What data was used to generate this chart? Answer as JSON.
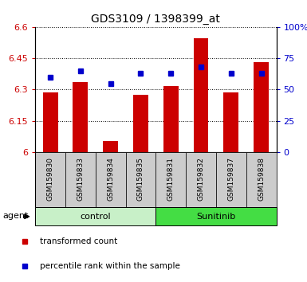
{
  "title": "GDS3109 / 1398399_at",
  "samples": [
    "GSM159830",
    "GSM159833",
    "GSM159834",
    "GSM159835",
    "GSM159831",
    "GSM159832",
    "GSM159837",
    "GSM159838"
  ],
  "red_values": [
    6.285,
    6.335,
    6.055,
    6.275,
    6.315,
    6.545,
    6.285,
    6.43
  ],
  "blue_values": [
    60,
    65,
    55,
    63,
    63,
    68,
    63,
    63
  ],
  "groups": [
    {
      "label": "control",
      "indices": [
        0,
        1,
        2,
        3
      ],
      "color": "#c8f0c8"
    },
    {
      "label": "Sunitinib",
      "indices": [
        4,
        5,
        6,
        7
      ],
      "color": "#44dd44"
    }
  ],
  "ylim_left": [
    6.0,
    6.6
  ],
  "ylim_right": [
    0,
    100
  ],
  "yticks_left": [
    6.0,
    6.15,
    6.3,
    6.45,
    6.6
  ],
  "yticks_right": [
    0,
    25,
    50,
    75,
    100
  ],
  "ytick_labels_left": [
    "6",
    "6.15",
    "6.3",
    "6.45",
    "6.6"
  ],
  "ytick_labels_right": [
    "0",
    "25",
    "50",
    "75",
    "100%"
  ],
  "bar_color": "#cc0000",
  "dot_color": "#0000cc",
  "bar_width": 0.5,
  "bar_base": 6.0,
  "agent_label": "agent",
  "legend": [
    {
      "color": "#cc0000",
      "label": "transformed count"
    },
    {
      "color": "#0000cc",
      "label": "percentile rank within the sample"
    }
  ]
}
